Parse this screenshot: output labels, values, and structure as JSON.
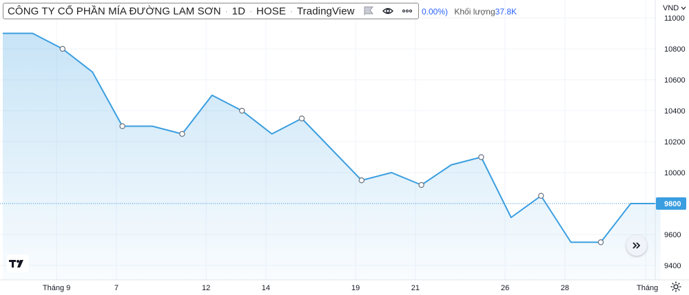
{
  "header": {
    "title": "CÔNG TY CỔ PHẦN MÍA ĐƯỜNG LAM SƠN",
    "interval": "1D",
    "exchange": "HOSE",
    "source": "TradingView",
    "change_text": "0.00%)",
    "volume_label": "Khối lượng",
    "volume_value": "37.8K",
    "currency": "VND"
  },
  "icons": {
    "flag": "flag-icon",
    "eye": "eye-icon",
    "more": "more-icon",
    "currency_dropdown": "chevron-down-icon",
    "scroll": "double-chevron-right-icon",
    "logo": "tradingview-logo-icon",
    "settings": "gear-icon"
  },
  "chart_data": {
    "type": "area",
    "x_tick_labels": [
      "Tháng 9",
      "7",
      "12",
      "14",
      "19",
      "21",
      "26",
      "28",
      "Tháng"
    ],
    "y_tick_labels": [
      "11000",
      "10800",
      "10600",
      "10400",
      "10200",
      "10000",
      "9800",
      "9600",
      "9400"
    ],
    "ylim": [
      9300,
      11100
    ],
    "last_price_label": "9800",
    "series": [
      {
        "values": [
          10900,
          10900,
          10800,
          10650,
          10300,
          10300,
          10250,
          10500,
          10400,
          10250,
          10350,
          10150,
          9950,
          10000,
          9920,
          10050,
          10100,
          9710,
          9850,
          9550,
          9550,
          9800,
          9800
        ],
        "markers": [
          2,
          4,
          6,
          8,
          10,
          12,
          14,
          16,
          18,
          20
        ],
        "color": "#3a9ee0"
      }
    ],
    "grid": true,
    "line_color": "#3a9ee0",
    "fill_color": "#3a9ee0"
  }
}
